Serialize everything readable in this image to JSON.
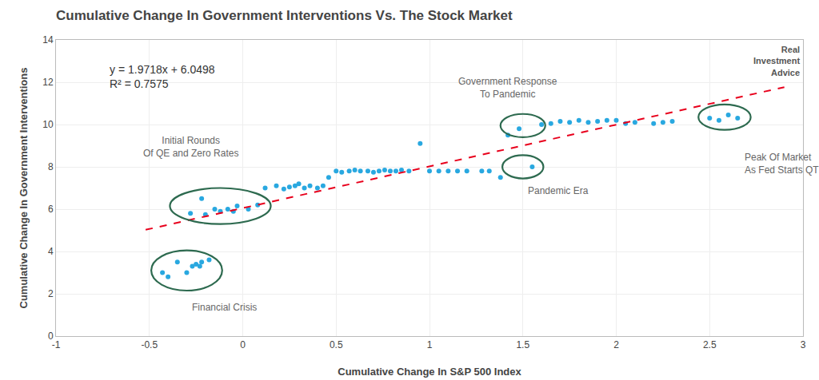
{
  "chart_data": {
    "type": "scatter",
    "title": "Cumulative Change In Government Interventions Vs. The Stock Market",
    "xlabel": "Cumulative Change In S&P 500 Index",
    "ylabel": "Cumulative Change In Government Interventions",
    "xlim": [
      -1,
      3
    ],
    "ylim": [
      0,
      14
    ],
    "xticks": [
      -1,
      -0.5,
      0,
      0.5,
      1,
      1.5,
      2,
      2.5,
      3
    ],
    "yticks": [
      0,
      2,
      4,
      6,
      8,
      10,
      12,
      14
    ],
    "grid": true,
    "series": [
      {
        "type": "scatter",
        "marker": "circle",
        "color": "#29a8e0",
        "x": [
          -0.43,
          -0.35,
          -0.27,
          -0.25,
          -0.22,
          -0.4,
          -0.3,
          -0.23,
          -0.18,
          -0.28,
          -0.2,
          -0.12,
          -0.08,
          -0.03,
          -0.22,
          -0.15,
          -0.05,
          0.03,
          0.08,
          0.12,
          0.18,
          0.22,
          0.25,
          0.28,
          0.3,
          0.33,
          0.36,
          0.4,
          0.43,
          0.46,
          0.5,
          0.53,
          0.57,
          0.6,
          0.63,
          0.67,
          0.7,
          0.73,
          0.76,
          0.79,
          0.82,
          0.85,
          0.89,
          0.95,
          1.0,
          1.05,
          1.1,
          1.15,
          1.2,
          1.28,
          1.32,
          1.38,
          1.42,
          1.48,
          1.55,
          1.6,
          1.65,
          1.7,
          1.75,
          1.8,
          1.85,
          1.9,
          1.95,
          2.0,
          2.05,
          2.1,
          2.2,
          2.25,
          2.3,
          2.5,
          2.55,
          2.6,
          2.65
        ],
        "values": [
          3.0,
          3.5,
          3.3,
          3.4,
          3.5,
          2.8,
          3.0,
          3.3,
          3.6,
          5.8,
          5.75,
          5.9,
          6.0,
          6.15,
          6.5,
          6.0,
          5.9,
          6.0,
          6.2,
          7.0,
          7.1,
          6.95,
          7.05,
          7.1,
          7.2,
          7.0,
          7.1,
          7.0,
          7.1,
          7.5,
          7.8,
          7.75,
          7.8,
          7.85,
          7.8,
          7.8,
          7.75,
          7.8,
          7.85,
          7.8,
          7.8,
          7.85,
          7.8,
          9.1,
          7.8,
          7.8,
          7.8,
          7.8,
          7.8,
          7.8,
          7.8,
          7.5,
          9.5,
          9.8,
          8.0,
          10.0,
          10.05,
          10.15,
          10.1,
          10.2,
          10.1,
          10.15,
          10.2,
          10.2,
          10.05,
          10.1,
          10.05,
          10.1,
          10.15,
          10.3,
          10.2,
          10.45,
          10.3
        ]
      },
      {
        "type": "line",
        "line_style": "dashed",
        "color": "#e8001c",
        "x": [
          -0.52,
          2.9
        ],
        "values": [
          5.024464,
          11.76802
        ]
      }
    ],
    "circle_color": "#2d6a4f",
    "circles": [
      {
        "cx": -0.3,
        "cy": 3.1,
        "rx": 0.19,
        "ry": 0.95,
        "label": "Financial Crisis",
        "label_x": -0.28,
        "label_y": 1.7
      },
      {
        "cx": -0.12,
        "cy": 6.15,
        "rx": 0.27,
        "ry": 0.85,
        "label": "Initial Rounds\nOf QE and Zero Rates",
        "label_x": -0.28,
        "label_y": 8.3
      },
      {
        "cx": 1.5,
        "cy": 8.0,
        "rx": 0.11,
        "ry": 0.55,
        "label": "Pandemic Era",
        "label_x": 1.52,
        "label_y": 7.2
      },
      {
        "cx": 1.5,
        "cy": 9.95,
        "rx": 0.12,
        "ry": 0.55,
        "label": "Government Response\nTo Pandemic",
        "label_x": 1.42,
        "label_y": 11.1
      },
      {
        "cx": 2.58,
        "cy": 10.35,
        "rx": 0.14,
        "ry": 0.6,
        "label": "Peak Of Market\nAs Fed Starts QT",
        "label_x": 2.68,
        "label_y": 8.8
      }
    ],
    "equation": {
      "text": "y = 1.9718x + 6.0498",
      "r_squared": "R² = 0.7575",
      "x": -0.72,
      "y": 13.0
    },
    "watermark": "Real\nInvestment\nAdvice"
  }
}
